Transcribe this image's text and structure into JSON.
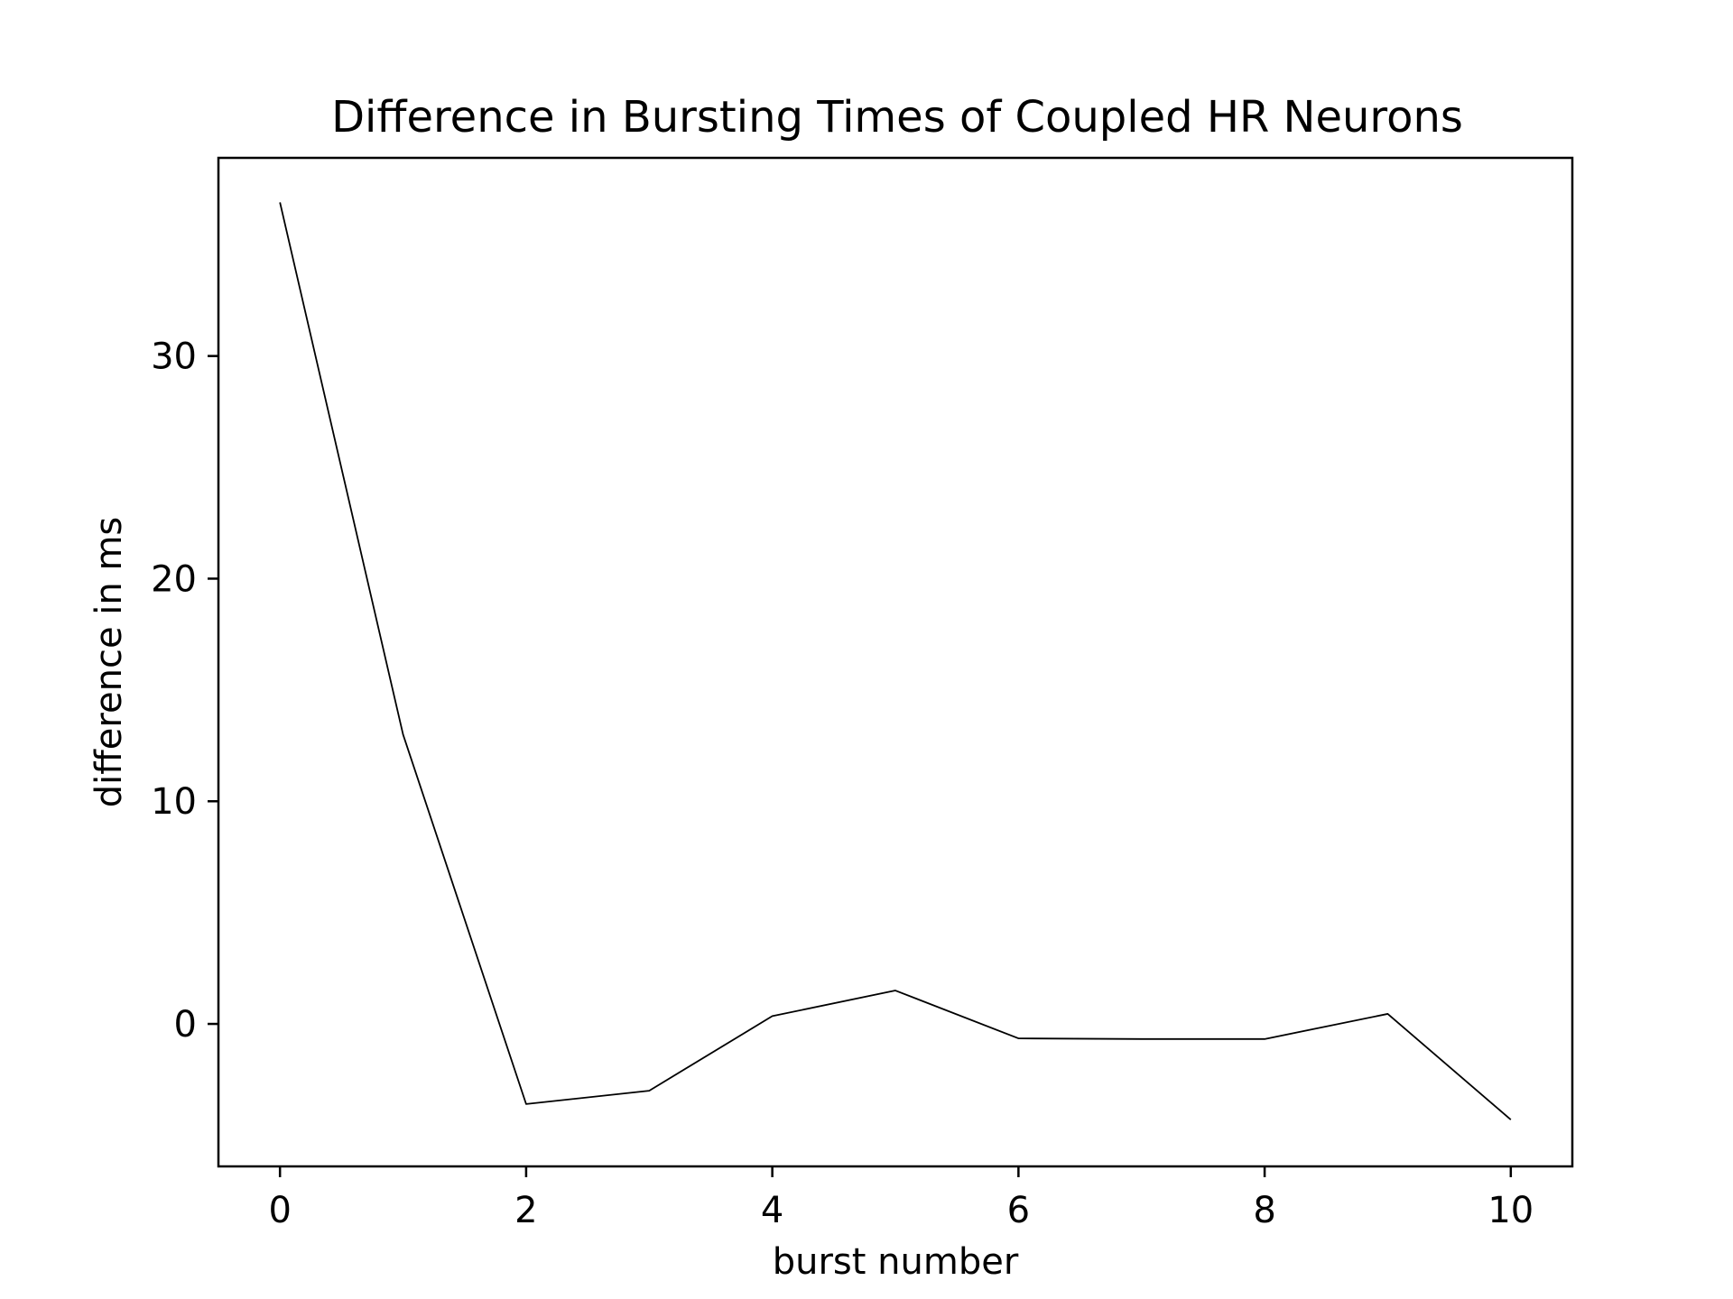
{
  "chart_data": {
    "type": "line",
    "title": "Difference in Bursting Times of Coupled HR Neurons",
    "xlabel": "burst number",
    "ylabel": "difference in ms",
    "x": [
      0,
      1,
      2,
      3,
      4,
      5,
      6,
      7,
      8,
      9,
      10
    ],
    "series": [
      {
        "values": [
          36.9,
          13.0,
          -3.6,
          -3.0,
          0.35,
          1.5,
          -0.65,
          -0.68,
          -0.68,
          0.45,
          -4.3
        ]
      }
    ],
    "xlim": [
      -0.5,
      10.5
    ],
    "ylim": [
      -6.4,
      38.9
    ],
    "xticks": [
      0,
      2,
      4,
      6,
      8,
      10
    ],
    "xtick_labels": [
      "0",
      "2",
      "4",
      "6",
      "8",
      "10"
    ],
    "yticks": [
      0,
      10,
      20,
      30
    ],
    "ytick_labels": [
      "0",
      "10",
      "20",
      "30"
    ],
    "grid": false,
    "line_color": "#000000"
  }
}
